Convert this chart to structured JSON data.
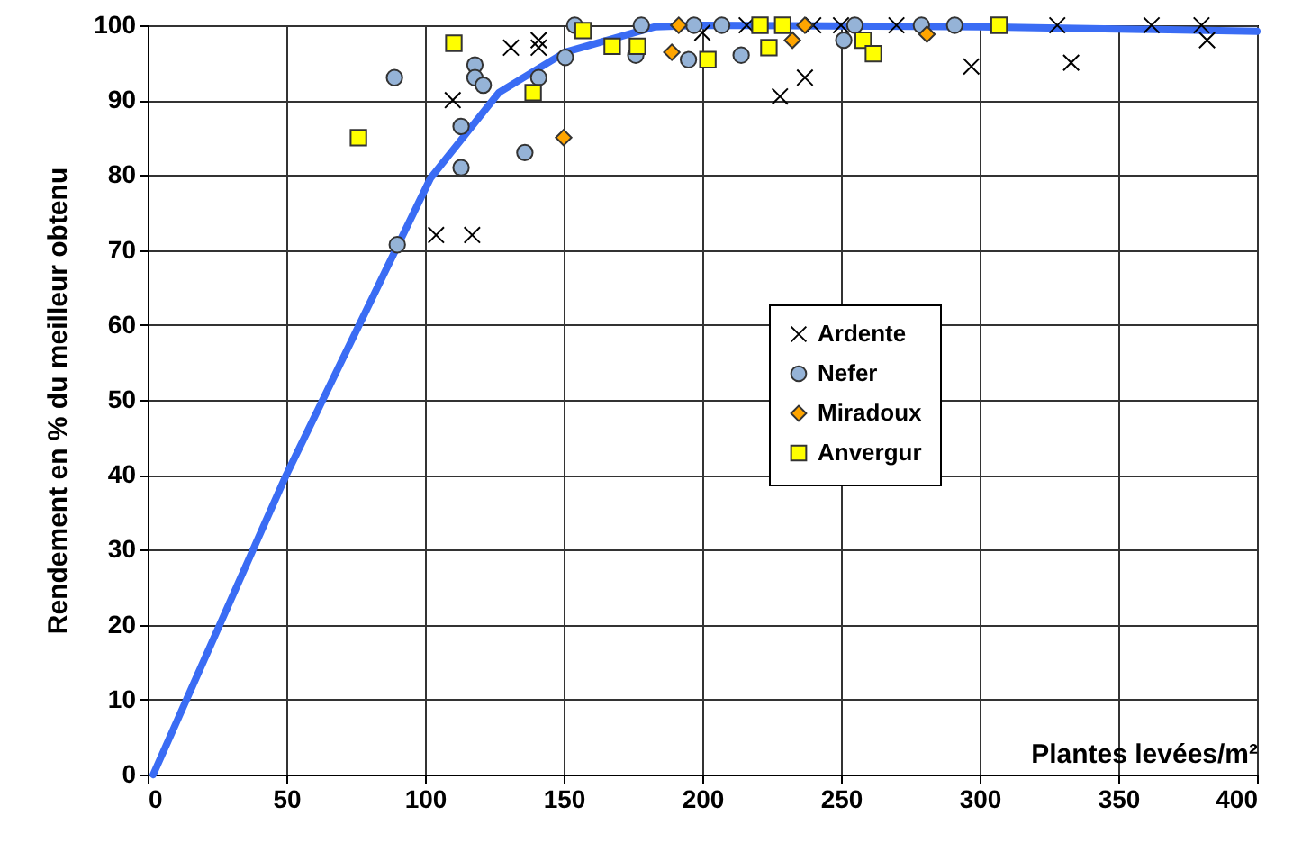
{
  "chart_data": {
    "type": "scatter",
    "xlabel": "Plantes levées/m²",
    "ylabel": "Rendement en % du meilleur obtenu",
    "xlim": [
      0,
      400
    ],
    "xticks": [
      0,
      50,
      100,
      150,
      200,
      250,
      300,
      350,
      400
    ],
    "ylim": [
      0,
      100
    ],
    "yticks": [
      0,
      10,
      20,
      30,
      40,
      50,
      60,
      70,
      80,
      90,
      100
    ],
    "grid": true,
    "legend": "right",
    "series": [
      {
        "name": "Ardente",
        "color": "#000000",
        "marker": "cross",
        "x": [
          104,
          117,
          110,
          131,
          141,
          141,
          200,
          216,
          237,
          228,
          240,
          250,
          270,
          297,
          328,
          333,
          362,
          380,
          382
        ],
        "values": [
          72,
          72,
          90,
          97,
          98,
          97,
          99,
          100,
          93,
          90.5,
          100,
          100,
          100,
          94.5,
          100,
          95,
          100,
          100,
          98
        ]
      },
      {
        "name": "Nefer",
        "color": "#95b3d7",
        "marker": "circle",
        "x": [
          89,
          90,
          113,
          113,
          118,
          118,
          121,
          136,
          141,
          150.6,
          154,
          176,
          178,
          195,
          197,
          207,
          214,
          251,
          255,
          279,
          291
        ],
        "values": [
          93,
          70.7,
          81,
          86.5,
          94.7,
          93,
          92,
          83,
          93,
          95.7,
          100,
          96,
          100,
          95.4,
          100,
          100,
          96,
          98,
          100,
          100,
          100
        ]
      },
      {
        "name": "Miradoux",
        "color": "#ffa500",
        "marker": "diamond",
        "x": [
          150,
          189,
          191.5,
          232.5,
          237,
          281
        ],
        "values": [
          85,
          96.4,
          100,
          98,
          100,
          98.8
        ]
      },
      {
        "name": "Anvergur",
        "color": "#ffff00",
        "marker": "square",
        "x": [
          76,
          110.4,
          139,
          157,
          167.5,
          176.6,
          202,
          220.8,
          229,
          224,
          258,
          261.7,
          307
        ],
        "values": [
          85,
          97.6,
          91,
          99.3,
          97.2,
          97.2,
          95.4,
          100,
          100,
          97,
          98,
          96.2,
          100
        ]
      },
      {
        "type": "line",
        "color": "#3a6cf4",
        "marker": "none",
        "x": [
          2,
          50,
          102,
          126.6,
          150.6,
          183,
          200,
          300,
          400
        ],
        "values": [
          0,
          40,
          79.6,
          91,
          96.4,
          99.8,
          100,
          99.8,
          99.2
        ]
      }
    ]
  }
}
